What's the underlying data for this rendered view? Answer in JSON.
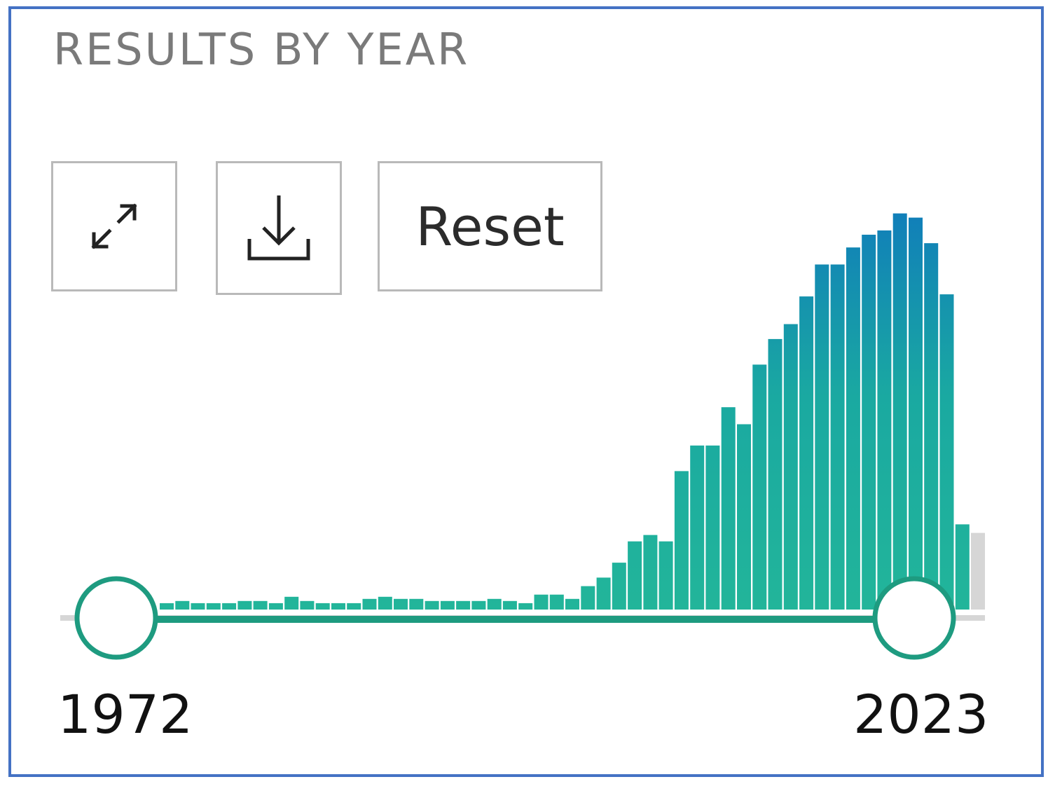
{
  "panel": {
    "title": "RESULTS BY YEAR",
    "reset_label": "Reset",
    "expand_icon": "expand-arrows-icon",
    "download_icon": "download-icon"
  },
  "range": {
    "min_label": "1972",
    "max_label": "2023"
  },
  "colors": {
    "bar_bottom": "#22b59a",
    "bar_top": "#0f78bd",
    "handle": "#1e9b80",
    "track": "#1e9b80",
    "out_of_range": "#d6d6d6"
  },
  "chart_data": {
    "type": "bar",
    "x": [
      1972,
      1973,
      1974,
      1975,
      1976,
      1977,
      1978,
      1979,
      1980,
      1981,
      1982,
      1983,
      1984,
      1985,
      1986,
      1987,
      1988,
      1989,
      1990,
      1991,
      1992,
      1993,
      1994,
      1995,
      1996,
      1997,
      1998,
      1999,
      2000,
      2001,
      2002,
      2003,
      2004,
      2005,
      2006,
      2007,
      2008,
      2009,
      2010,
      2011,
      2012,
      2013,
      2014,
      2015,
      2016,
      2017,
      2018,
      2019,
      2020,
      2021,
      2022,
      2023,
      2024
    ],
    "values": [
      1.5,
      2,
      1.5,
      1.5,
      1.5,
      2,
      2,
      1.5,
      3,
      2,
      1.5,
      1.5,
      1.5,
      2.5,
      3,
      2.5,
      2.5,
      2,
      2,
      2,
      2,
      2.5,
      2,
      1.5,
      3.5,
      3.5,
      2.5,
      5.5,
      7.5,
      11,
      16,
      17.5,
      16,
      32.5,
      38.5,
      38.5,
      47.5,
      43.5,
      57.5,
      63.5,
      67,
      73.5,
      81,
      81,
      85,
      88,
      89,
      93,
      92,
      86,
      74,
      20,
      18
    ],
    "in_range_through": 2023,
    "ylim": [
      0,
      100
    ]
  }
}
